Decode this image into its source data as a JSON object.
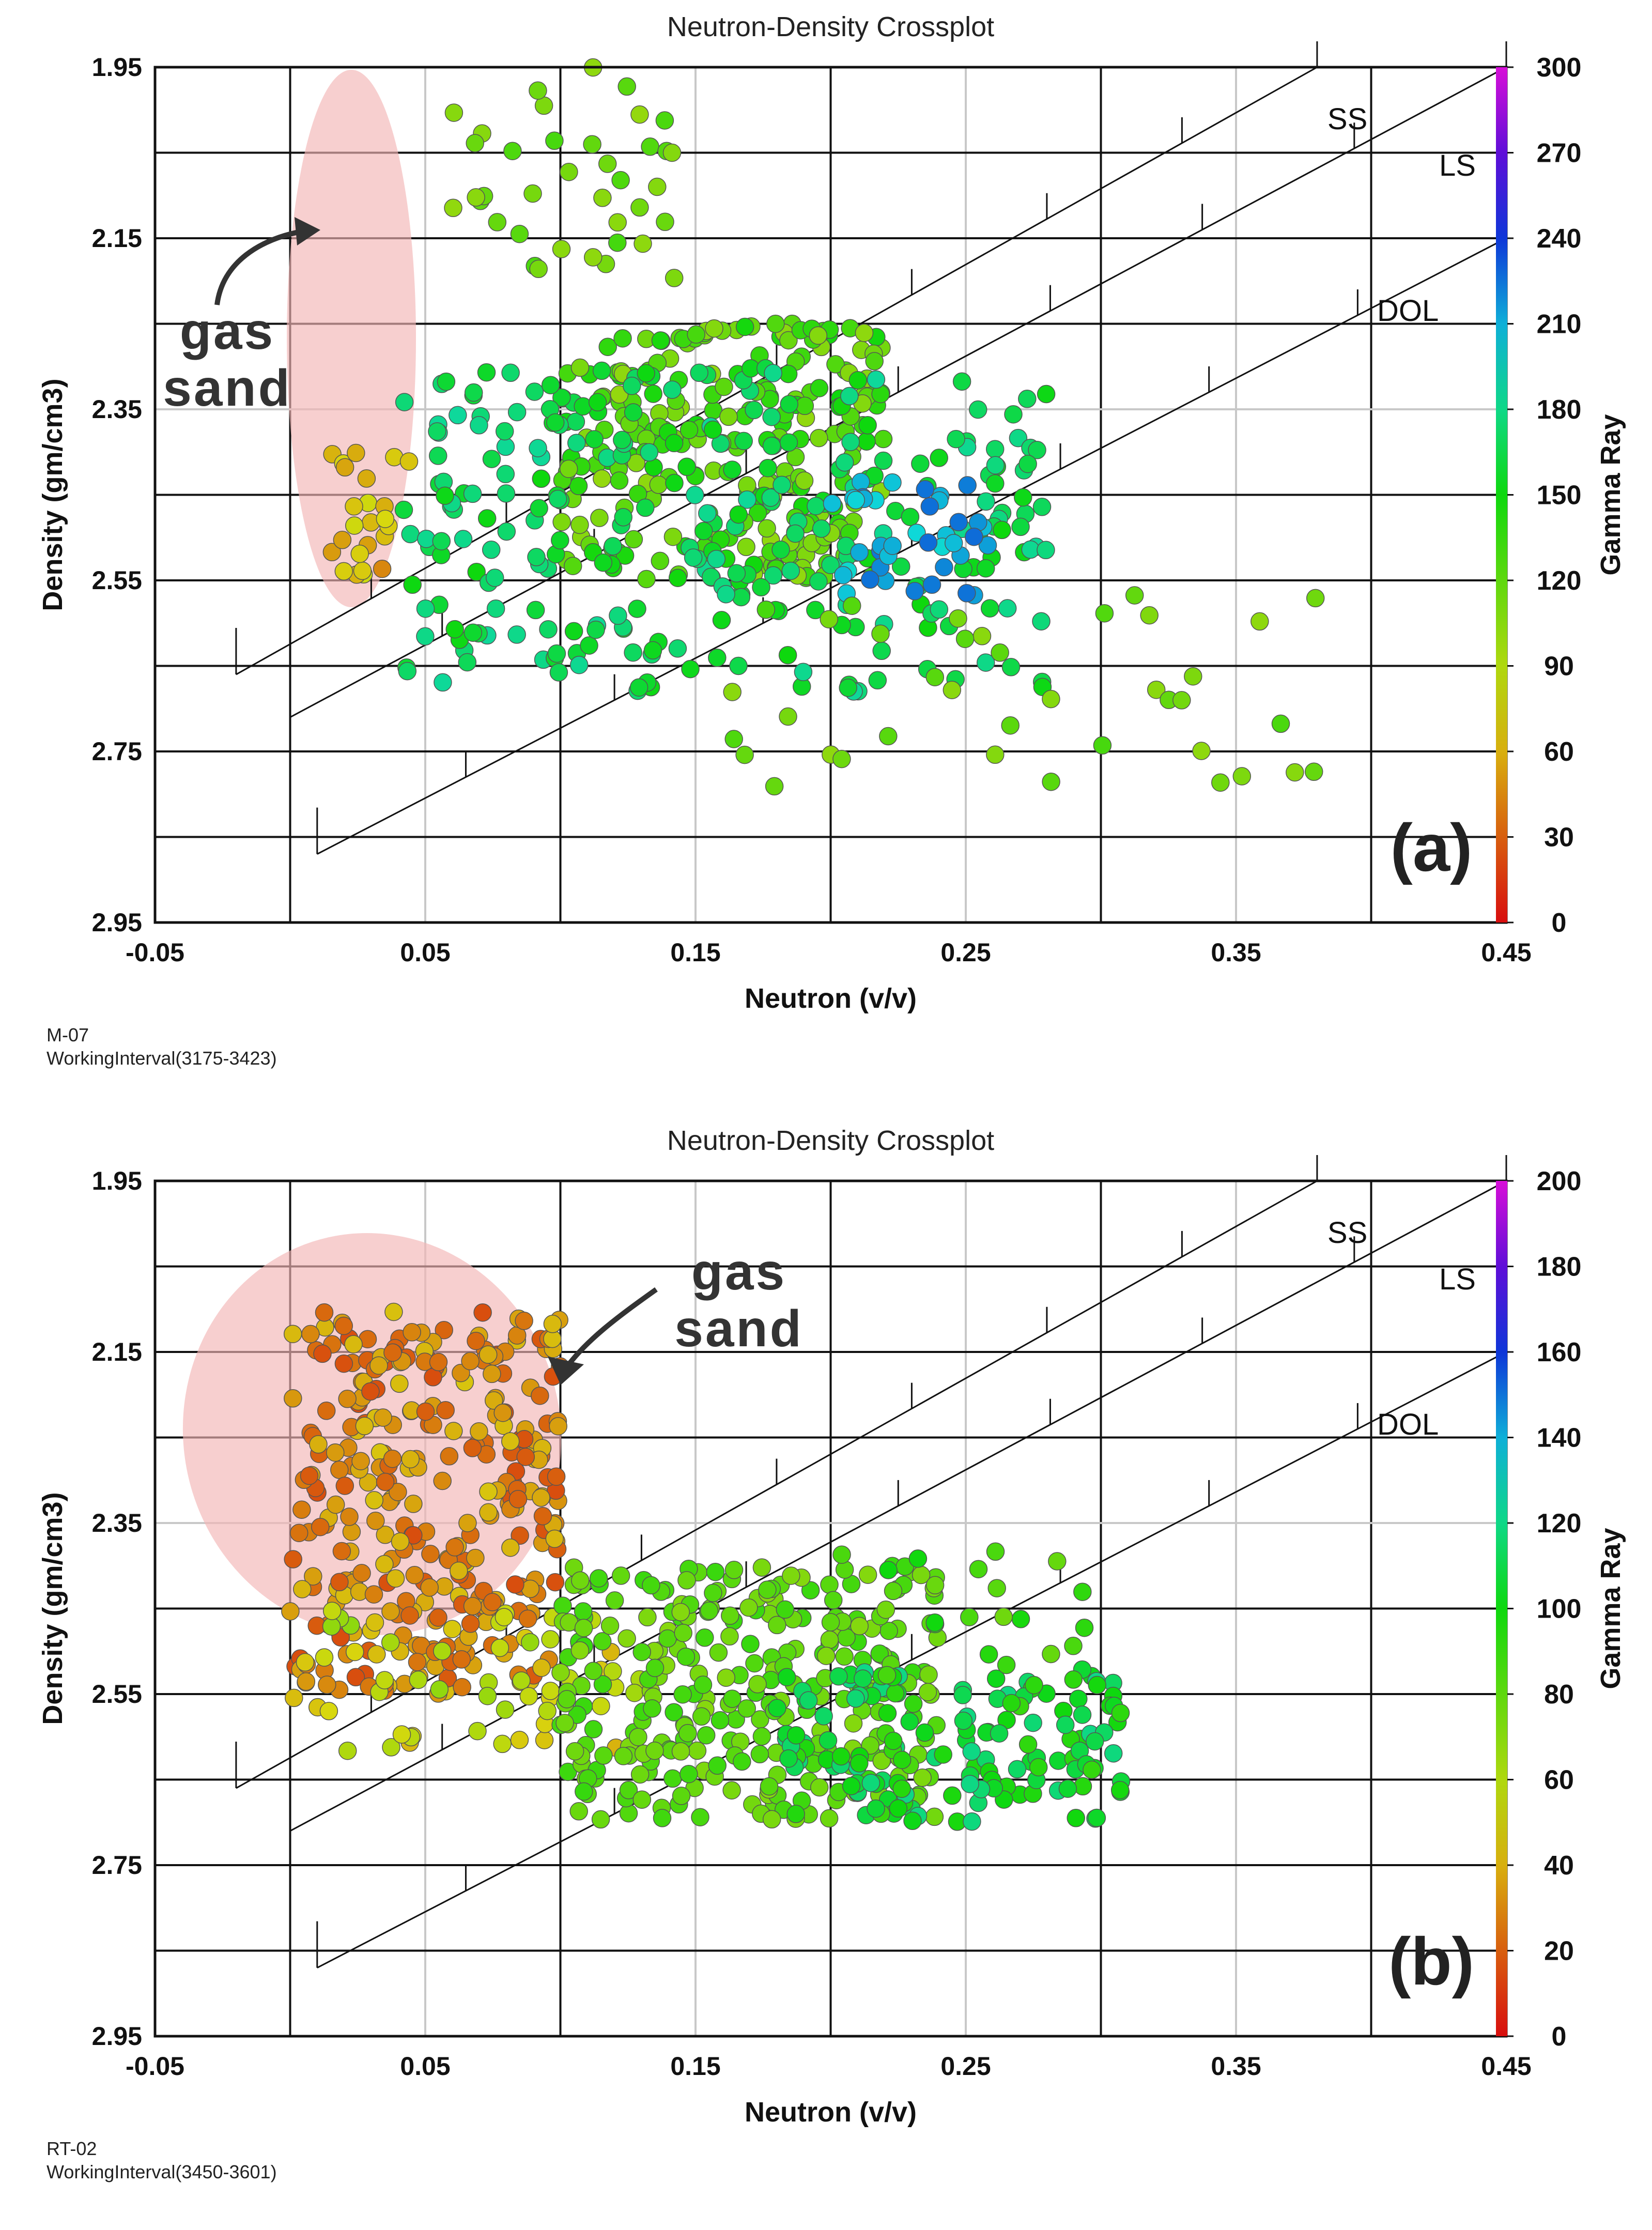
{
  "chart_data": [
    {
      "type": "scatter",
      "title": "Neutron-Density Crossplot",
      "xlabel": "Neutron (v/v)",
      "ylabel": "Density (gm/cm3)",
      "xlim": [
        -0.05,
        0.45
      ],
      "ylim": [
        1.95,
        2.95
      ],
      "y_inverted": true,
      "xticks": [
        "-0.05",
        "0.05",
        "0.15",
        "0.25",
        "0.35",
        "0.45"
      ],
      "yticks": [
        "1.95",
        "2.15",
        "2.35",
        "2.55",
        "2.75",
        "2.95"
      ],
      "colorbar": {
        "label": "Gamma Ray",
        "range": [
          0,
          300
        ],
        "ticks": [
          "300",
          "270",
          "240",
          "210",
          "180",
          "150",
          "120",
          "90",
          "60",
          "30",
          "0"
        ]
      },
      "lithology_lines": [
        {
          "name": "SS",
          "label": "SS",
          "points": [
            [
              -0.02,
              2.66
            ],
            [
              0.38,
              1.95
            ]
          ]
        },
        {
          "name": "LS",
          "label": "LS",
          "points": [
            [
              0.0,
              2.71
            ],
            [
              0.45,
              1.95
            ]
          ]
        },
        {
          "name": "DOL",
          "label": "DOL",
          "points": [
            [
              0.01,
              2.87
            ],
            [
              0.45,
              2.15
            ]
          ]
        }
      ],
      "annotation": {
        "text_1": "gas",
        "text_2": "sand"
      },
      "panel_label": "(a)",
      "well": "M-07",
      "interval": "WorkingInterval(3175-3423)",
      "clusters": [
        {
          "name": "gas sand",
          "x_range": [
            0.015,
            0.045
          ],
          "y_range": [
            2.4,
            2.55
          ],
          "n": 24,
          "gr_range": [
            40,
            80
          ]
        },
        {
          "name": "upper green",
          "x_range": [
            0.06,
            0.15
          ],
          "y_range": [
            1.95,
            2.2
          ],
          "n": 38,
          "gr_range": [
            100,
            130
          ]
        },
        {
          "name": "green core",
          "x_range": [
            0.1,
            0.22
          ],
          "y_range": [
            2.25,
            2.55
          ],
          "n": 260,
          "gr_range": [
            100,
            150
          ]
        },
        {
          "name": "cyan band",
          "x_range": [
            0.04,
            0.28
          ],
          "y_range": [
            2.3,
            2.68
          ],
          "n": 280,
          "gr_range": [
            150,
            185
          ]
        },
        {
          "name": "blue cluster",
          "x_range": [
            0.2,
            0.26
          ],
          "y_range": [
            2.42,
            2.57
          ],
          "n": 40,
          "gr_range": [
            195,
            230
          ]
        },
        {
          "name": "tail",
          "x_range": [
            0.16,
            0.38
          ],
          "y_range": [
            2.55,
            2.8
          ],
          "n": 38,
          "gr_range": [
            100,
            130
          ]
        }
      ]
    },
    {
      "type": "scatter",
      "title": "Neutron-Density Crossplot",
      "xlabel": "Neutron (v/v)",
      "ylabel": "Density (gm/cm3)",
      "xlim": [
        -0.05,
        0.45
      ],
      "ylim": [
        1.95,
        2.95
      ],
      "y_inverted": true,
      "xticks": [
        "-0.05",
        "0.05",
        "0.15",
        "0.25",
        "0.35",
        "0.45"
      ],
      "yticks": [
        "1.95",
        "2.15",
        "2.35",
        "2.55",
        "2.75",
        "2.95"
      ],
      "colorbar": {
        "label": "Gamma Ray",
        "range": [
          0,
          200
        ],
        "ticks": [
          "200",
          "180",
          "160",
          "140",
          "120",
          "100",
          "80",
          "60",
          "40",
          "20",
          "0"
        ]
      },
      "lithology_lines": [
        {
          "name": "SS",
          "label": "SS",
          "points": [
            [
              -0.02,
              2.66
            ],
            [
              0.38,
              1.95
            ]
          ]
        },
        {
          "name": "LS",
          "label": "LS",
          "points": [
            [
              0.0,
              2.71
            ],
            [
              0.45,
              1.95
            ]
          ]
        },
        {
          "name": "DOL",
          "label": "DOL",
          "points": [
            [
              0.01,
              2.87
            ],
            [
              0.45,
              2.15
            ]
          ]
        }
      ],
      "annotation": {
        "text_1": "gas",
        "text_2": "sand"
      },
      "panel_label": "(b)",
      "well": "RT-02",
      "interval": "WorkingInterval(3450-3601)",
      "clusters": [
        {
          "name": "gas sand",
          "x_range": [
            0.0,
            0.1
          ],
          "y_range": [
            2.1,
            2.55
          ],
          "n": 330,
          "gr_range": [
            15,
            45
          ]
        },
        {
          "name": "transition",
          "x_range": [
            0.0,
            0.13
          ],
          "y_range": [
            2.45,
            2.62
          ],
          "n": 60,
          "gr_range": [
            40,
            70
          ]
        },
        {
          "name": "green core",
          "x_range": [
            0.1,
            0.24
          ],
          "y_range": [
            2.4,
            2.7
          ],
          "n": 300,
          "gr_range": [
            70,
            90
          ]
        },
        {
          "name": "teal band",
          "x_range": [
            0.18,
            0.31
          ],
          "y_range": [
            2.52,
            2.7
          ],
          "n": 150,
          "gr_range": [
            90,
            120
          ]
        },
        {
          "name": "right scatter",
          "x_range": [
            0.2,
            0.3
          ],
          "y_range": [
            2.38,
            2.55
          ],
          "n": 25,
          "gr_range": [
            75,
            100
          ]
        }
      ]
    }
  ]
}
